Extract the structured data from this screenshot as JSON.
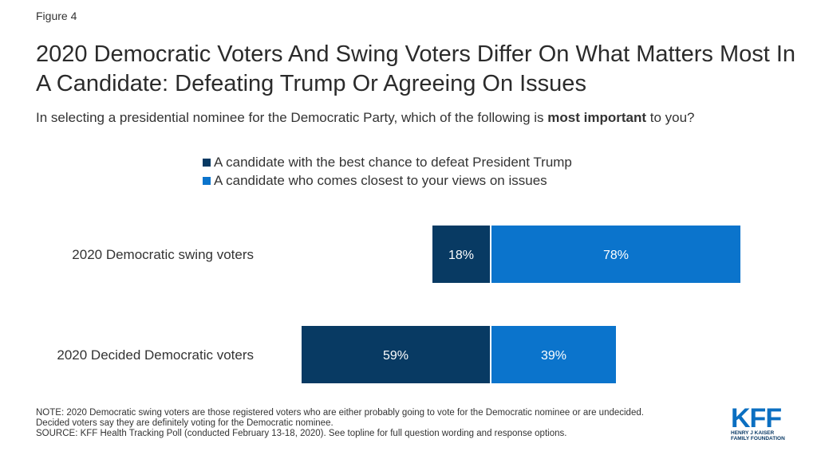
{
  "figure_label": "Figure 4",
  "title": "2020 Democratic Voters And Swing Voters Differ On What Matters Most In A Candidate: Defeating Trump Or Agreeing On Issues",
  "subtitle_pre": "In selecting a presidential nominee for the Democratic Party, which of the following is ",
  "subtitle_bold": "most important",
  "subtitle_post": " to you?",
  "colors": {
    "defeat_trump": "#083a63",
    "views_on_issues": "#0b74cc"
  },
  "chart_data": {
    "type": "bar",
    "orientation": "horizontal",
    "stacked": "diverging",
    "categories": [
      "2020 Democratic swing voters",
      "2020 Decided Democratic voters"
    ],
    "series": [
      {
        "name": "A candidate with the best chance to defeat President Trump",
        "values": [
          18,
          59
        ],
        "labels": [
          "18%",
          "59%"
        ]
      },
      {
        "name": "A candidate who comes closest to your views on issues",
        "values": [
          78,
          39
        ],
        "labels": [
          "78%",
          "39%"
        ]
      }
    ],
    "legend_position": "top",
    "grid": false
  },
  "note": "NOTE: 2020 Democratic swing voters are those registered voters who are either probably going to vote for the Democratic nominee or are undecided. Decided voters say they are definitely voting for the Democratic nominee.",
  "source": "SOURCE: KFF Health Tracking Poll (conducted February 13-18, 2020). See topline for full question wording and response options.",
  "logo": {
    "mark": "KFF",
    "line1": "HENRY J KAISER",
    "line2": "FAMILY FOUNDATION"
  }
}
